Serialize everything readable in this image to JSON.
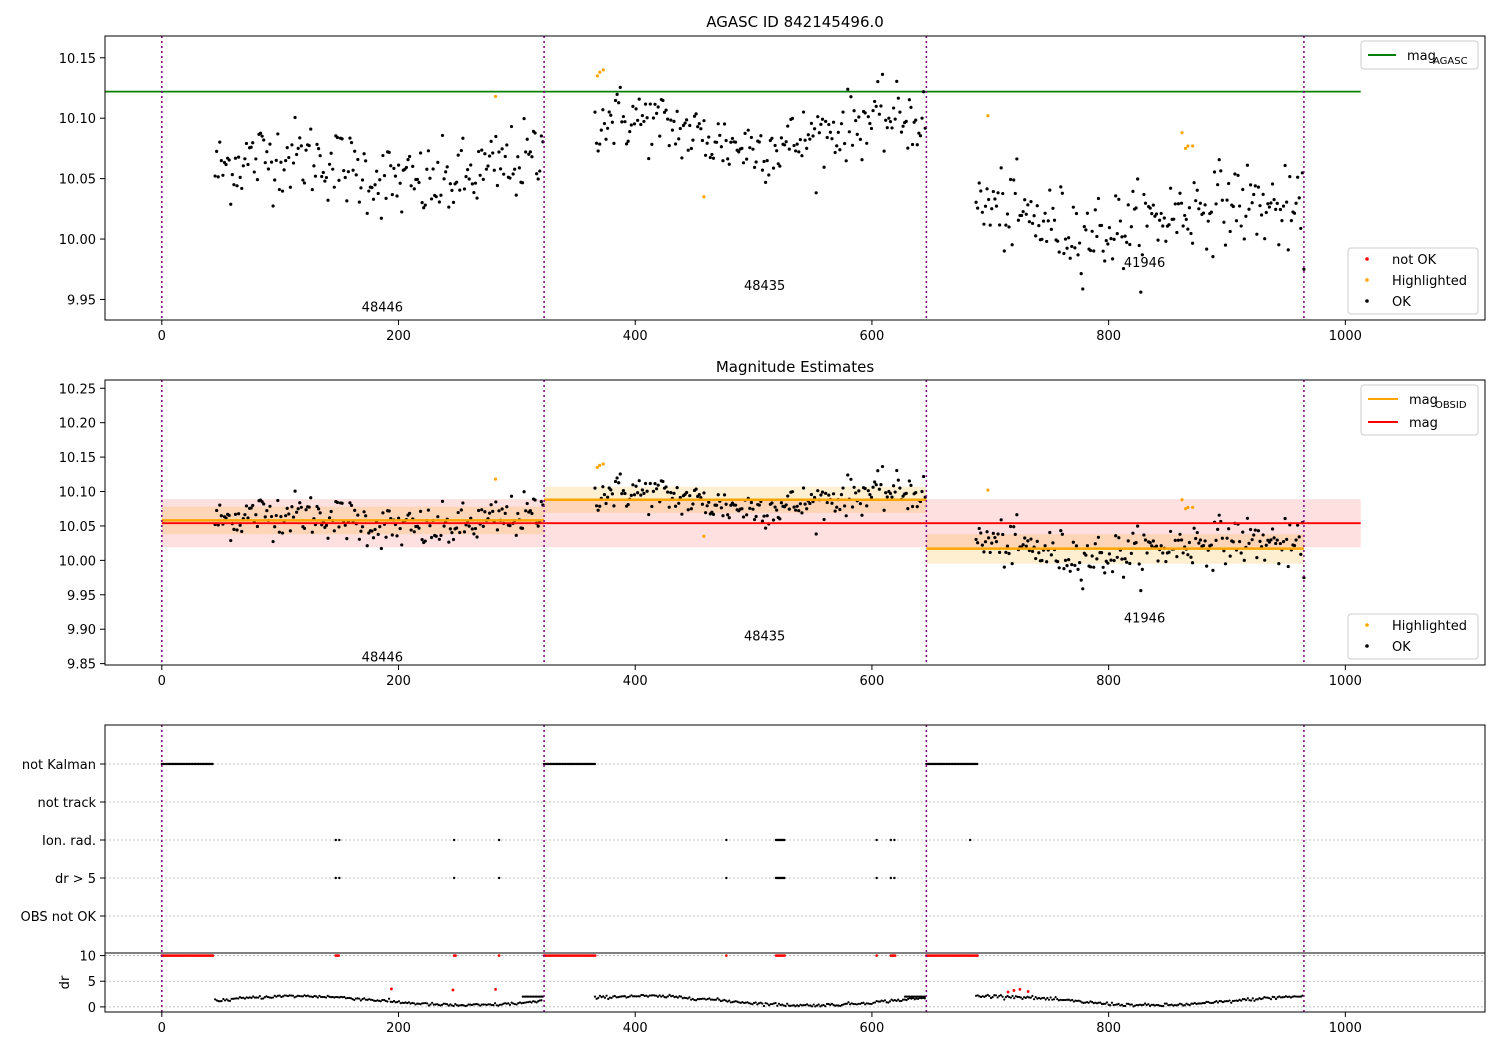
{
  "colors": {
    "ok": "#000000",
    "highlighted": "#ffa500",
    "not_ok": "#ff0000",
    "mag_agasc": "#008000",
    "mag_obsid": "#ffa500",
    "mag": "#ff0000",
    "obs_boundary": "#800080",
    "grid": "#b0b0b0"
  },
  "chart_data": [
    {
      "type": "scatter",
      "title": "AGASC ID 842145496.0",
      "xlim": [
        -48,
        1118
      ],
      "ylim": [
        9.933,
        10.168
      ],
      "xticks": [
        0,
        200,
        400,
        600,
        800,
        1000
      ],
      "yticks": [
        9.95,
        10.0,
        10.05,
        10.1,
        10.15
      ],
      "obs_boundaries": [
        0,
        323,
        646,
        965
      ],
      "obsid_labels": [
        {
          "text": "48446",
          "x": 161,
          "y": 9.944
        },
        {
          "text": "48435",
          "x": 484,
          "y": 9.962
        },
        {
          "text": "41946",
          "x": 805,
          "y": 9.981
        }
      ],
      "mag_agasc": {
        "value": 10.122,
        "x_range": [
          -48,
          1013
        ]
      },
      "legend_top": [
        {
          "label": "mag",
          "sub": "AGASC",
          "kind": "line",
          "color_key": "mag_agasc"
        }
      ],
      "legend_bottom": [
        {
          "label": "not OK",
          "kind": "marker",
          "color_key": "not_ok"
        },
        {
          "label": "Highlighted",
          "kind": "marker",
          "color_key": "highlighted"
        },
        {
          "label": "OK",
          "kind": "marker",
          "color_key": "ok"
        }
      ],
      "segments": [
        {
          "x_start": 45,
          "x_end": 322,
          "mean": 10.057,
          "scatter": 0.021
        },
        {
          "x_start": 366,
          "x_end": 645,
          "mean": 10.088,
          "scatter": 0.018
        },
        {
          "x_start": 688,
          "x_end": 965,
          "mean": 10.018,
          "scatter": 0.022
        }
      ],
      "highlighted_points": [
        [
          282,
          10.118
        ],
        [
          368,
          10.135
        ],
        [
          370,
          10.138
        ],
        [
          373,
          10.14
        ],
        [
          458,
          10.035
        ],
        [
          698,
          10.102
        ],
        [
          862,
          10.088
        ],
        [
          865,
          10.075
        ],
        [
          867,
          10.077
        ],
        [
          871,
          10.077
        ]
      ]
    },
    {
      "type": "scatter",
      "title": "Magnitude Estimates",
      "xlim": [
        -48,
        1118
      ],
      "ylim": [
        9.848,
        10.262
      ],
      "xticks": [
        0,
        200,
        400,
        600,
        800,
        1000
      ],
      "yticks": [
        9.85,
        9.9,
        9.95,
        10.0,
        10.05,
        10.1,
        10.15,
        10.2,
        10.25
      ],
      "obs_boundaries": [
        0,
        323,
        646,
        965
      ],
      "obsid_labels": [
        {
          "text": "48446",
          "x": 161,
          "y": 9.86
        },
        {
          "text": "48435",
          "x": 484,
          "y": 9.891
        },
        {
          "text": "41946",
          "x": 805,
          "y": 9.917
        }
      ],
      "mag": {
        "value": 10.054,
        "band": [
          10.019,
          10.089
        ],
        "x_range": [
          0,
          1013
        ]
      },
      "mag_obsid": [
        {
          "x_range": [
            0,
            323
          ],
          "value": 10.058,
          "band": [
            10.038,
            10.078
          ]
        },
        {
          "x_range": [
            323,
            646
          ],
          "value": 10.088,
          "band": [
            10.069,
            10.107
          ]
        },
        {
          "x_range": [
            646,
            965
          ],
          "value": 10.017,
          "band": [
            9.995,
            10.038
          ]
        }
      ],
      "legend_top": [
        {
          "label": "mag",
          "sub": "OBSID",
          "kind": "line",
          "color_key": "mag_obsid"
        },
        {
          "label": "mag",
          "sub": "",
          "kind": "line",
          "color_key": "mag"
        }
      ],
      "legend_bottom": [
        {
          "label": "Highlighted",
          "kind": "marker",
          "color_key": "highlighted"
        },
        {
          "label": "OK",
          "kind": "marker",
          "color_key": "ok"
        }
      ]
    },
    {
      "type": "scatter",
      "title": "",
      "xlim": [
        -48,
        1118
      ],
      "xticks": [
        0,
        200,
        400,
        600,
        800,
        1000
      ],
      "obs_boundaries": [
        0,
        323,
        646,
        965
      ],
      "flag_rows": [
        "not Kalman",
        "not track",
        "Ion. rad.",
        "dr > 5",
        "OBS not OK"
      ],
      "flag_ranges": [
        {
          "row": "not Kalman",
          "ranges": [
            [
              0,
              44
            ],
            [
              323,
              367
            ],
            [
              646,
              690
            ]
          ]
        }
      ],
      "flag_points": [
        {
          "row": "Ion. rad.",
          "x": [
            147,
            150,
            247,
            285,
            477,
            519,
            520,
            521,
            522,
            523,
            524,
            525,
            526,
            604,
            616,
            619,
            683
          ]
        },
        {
          "row": "dr > 5",
          "x": [
            147,
            150,
            247,
            285,
            477,
            519,
            520,
            521,
            522,
            523,
            524,
            525,
            526,
            604,
            616,
            619
          ]
        }
      ],
      "dr_panel": {
        "ylabel": "dr",
        "yticks": [
          0,
          5,
          10
        ],
        "ylim": [
          -1,
          10.5
        ],
        "red_at_10": [
          [
            0,
            44
          ],
          [
            147,
            150
          ],
          [
            247,
            249
          ],
          [
            285,
            286
          ],
          [
            323,
            367
          ],
          [
            477,
            478
          ],
          [
            519,
            527
          ],
          [
            604,
            605
          ],
          [
            616,
            620
          ],
          [
            646,
            690
          ]
        ],
        "red_low": [
          [
            194,
            3.5
          ],
          [
            246,
            3.3
          ],
          [
            282,
            3.4
          ],
          [
            715,
            2.9
          ],
          [
            720,
            3.2
          ],
          [
            725,
            3.4
          ],
          [
            732,
            3.0
          ]
        ]
      }
    }
  ]
}
